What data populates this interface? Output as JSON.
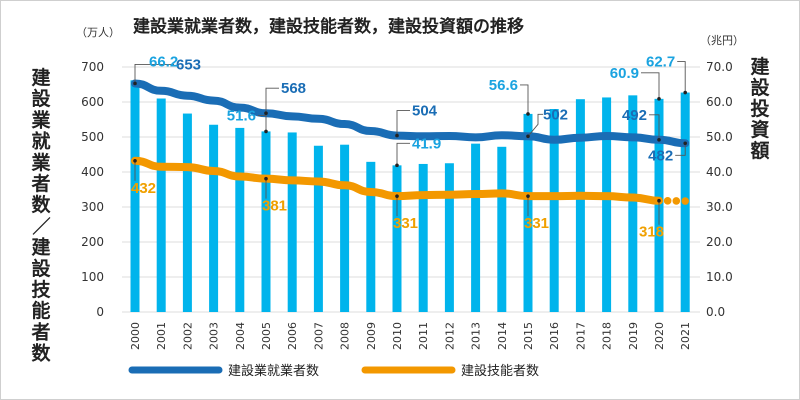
{
  "chart_data": {
    "type": "bar+line",
    "title": "建設業就業者数，建設技能者数，建設投資額の推移",
    "left_unit": "（万人）",
    "right_unit": "（兆円）",
    "left_axis_label": "建設業就業者数／建設技能者数",
    "right_axis_label": "建設投資額",
    "left_ylim": [
      0,
      700
    ],
    "right_ylim": [
      0,
      70
    ],
    "left_ticks": [
      "700",
      "600",
      "500",
      "400",
      "300",
      "200",
      "100",
      "0"
    ],
    "right_ticks": [
      "70.0",
      "60.0",
      "50.0",
      "40.0",
      "30.0",
      "20.0",
      "10.0",
      "0.0"
    ],
    "grid": true,
    "categories": [
      "2000",
      "2001",
      "2002",
      "2003",
      "2004",
      "2005",
      "2006",
      "2007",
      "2008",
      "2009",
      "2010",
      "2011",
      "2012",
      "2013",
      "2014",
      "2015",
      "2016",
      "2017",
      "2018",
      "2019",
      "2020",
      "2021"
    ],
    "series": [
      {
        "name": "建設投資額",
        "kind": "bar",
        "axis": "right",
        "color": "#00b4ec",
        "values": [
          66.2,
          61.0,
          56.7,
          53.5,
          52.6,
          51.6,
          51.3,
          47.5,
          47.8,
          42.9,
          41.9,
          42.3,
          42.5,
          48.1,
          47.2,
          56.6,
          58.0,
          60.8,
          61.3,
          61.9,
          60.9,
          62.7
        ]
      },
      {
        "name": "建設業就業者数",
        "kind": "line",
        "axis": "left",
        "color": "#1a6db5",
        "values": [
          653,
          632,
          618,
          604,
          584,
          568,
          559,
          552,
          537,
          517,
          504,
          502,
          503,
          499,
          505,
          502,
          492,
          498,
          503,
          499,
          492,
          482
        ]
      },
      {
        "name": "建設技能者数",
        "kind": "line",
        "axis": "left",
        "color": "#f39800",
        "dotted_last": true,
        "values": [
          432,
          415,
          414,
          403,
          387,
          381,
          376,
          373,
          362,
          343,
          331,
          334,
          335,
          337,
          339,
          331,
          331,
          332,
          331,
          327,
          318,
          317
        ]
      }
    ],
    "annotations": [
      {
        "series": "建設業就業者数",
        "year": "2000",
        "text": "653",
        "color": "blue"
      },
      {
        "series": "建設業就業者数",
        "year": "2005",
        "text": "568",
        "color": "blue"
      },
      {
        "series": "建設業就業者数",
        "year": "2010",
        "text": "504",
        "color": "blue"
      },
      {
        "series": "建設業就業者数",
        "year": "2015",
        "text": "502",
        "color": "blue"
      },
      {
        "series": "建設業就業者数",
        "year": "2020",
        "text": "492",
        "color": "blue"
      },
      {
        "series": "建設業就業者数",
        "year": "2021",
        "text": "482",
        "color": "blue"
      },
      {
        "series": "建設投資額",
        "year": "2000",
        "text": "66.2",
        "color": "cyan"
      },
      {
        "series": "建設投資額",
        "year": "2005",
        "text": "51.6",
        "color": "cyan"
      },
      {
        "series": "建設投資額",
        "year": "2010",
        "text": "41.9",
        "color": "cyan"
      },
      {
        "series": "建設投資額",
        "year": "2015",
        "text": "56.6",
        "color": "cyan"
      },
      {
        "series": "建設投資額",
        "year": "2020",
        "text": "60.9",
        "color": "cyan"
      },
      {
        "series": "建設投資額",
        "year": "2021",
        "text": "62.7",
        "color": "cyan"
      },
      {
        "series": "建設技能者数",
        "year": "2000",
        "text": "432",
        "color": "orange"
      },
      {
        "series": "建設技能者数",
        "year": "2005",
        "text": "381",
        "color": "orange"
      },
      {
        "series": "建設技能者数",
        "year": "2010",
        "text": "331",
        "color": "orange"
      },
      {
        "series": "建設技能者数",
        "year": "2015",
        "text": "331",
        "color": "orange"
      },
      {
        "series": "建設技能者数",
        "year": "2020",
        "text": "318",
        "color": "orange"
      }
    ],
    "legend": {
      "placement": "bottom",
      "items": [
        {
          "label": "建設業就業者数",
          "color": "#1a6db5"
        },
        {
          "label": "建設技能者数",
          "color": "#f39800"
        }
      ]
    }
  }
}
